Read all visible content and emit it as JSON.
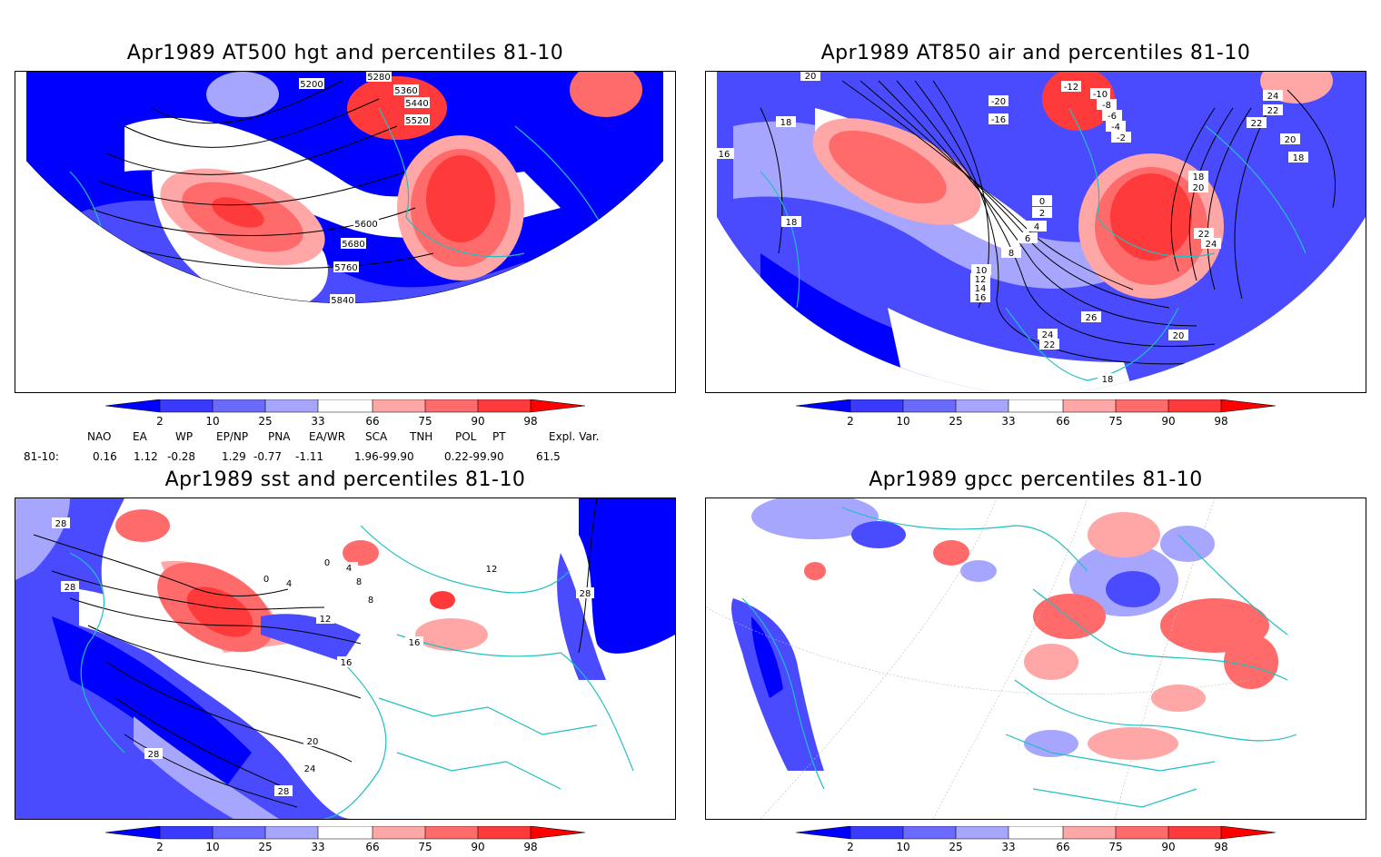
{
  "panels": [
    {
      "id": "at500",
      "title": "Apr1989 AT500 hgt and percentiles 81-10",
      "contour_labels": [
        "5200",
        "5280",
        "5360",
        "5440",
        "5520",
        "5600",
        "5680",
        "5760",
        "5840"
      ]
    },
    {
      "id": "at850",
      "title": "Apr1989 AT850 air and percentiles 81-10",
      "contour_labels": [
        "20",
        "-12",
        "-10",
        "-8",
        "-6",
        "-4",
        "-2",
        "-20",
        "-16",
        "24",
        "22",
        "22",
        "20",
        "18",
        "18",
        "16",
        "18",
        "18",
        "0",
        "2",
        "4",
        "6",
        "8",
        "10",
        "12",
        "14",
        "16",
        "20",
        "22",
        "24",
        "26",
        "24",
        "22",
        "20",
        "18"
      ]
    },
    {
      "id": "sst",
      "title": "Apr1989 sst and percentiles 81-10",
      "contour_labels": [
        "28",
        "28",
        "0",
        "4",
        "0",
        "4",
        "8",
        "8",
        "12",
        "12",
        "16",
        "16",
        "20",
        "24",
        "28",
        "28",
        "28"
      ]
    },
    {
      "id": "gpcc",
      "title": "Apr1989 gpcc percentiles 81-10",
      "contour_labels": []
    }
  ],
  "colorbar": {
    "labels": [
      "2",
      "10",
      "25",
      "33",
      "66",
      "75",
      "90",
      "98"
    ],
    "colors": [
      "#0000ff",
      "#3a3aff",
      "#6a6aff",
      "#a6a6ff",
      "#ffffff",
      "#ffa6a6",
      "#ff6a6a",
      "#ff3a3a",
      "#ff0000"
    ]
  },
  "indices": {
    "headers": [
      "NAO",
      "EA",
      "WP",
      "EP/NP",
      "PNA",
      "EA/WR",
      "SCA",
      "TNH",
      "POL",
      "PT",
      "Expl. Var."
    ],
    "row_label": "81-10:",
    "values": [
      "0.16",
      "1.12",
      "-0.28",
      "1.29",
      "-0.77",
      "-1.11",
      "1.96",
      "-99.90",
      "0.22",
      "-99.90",
      "61.5"
    ]
  },
  "colors": {
    "coast": "#20c0c0",
    "blue_strong": "#0000ff",
    "blue_mid": "#4a4aff",
    "blue_light": "#a6a6ff",
    "red_light": "#ffa6a6",
    "red_mid": "#ff6a6a",
    "red_strong": "#ff0000",
    "contour": "#000000"
  }
}
